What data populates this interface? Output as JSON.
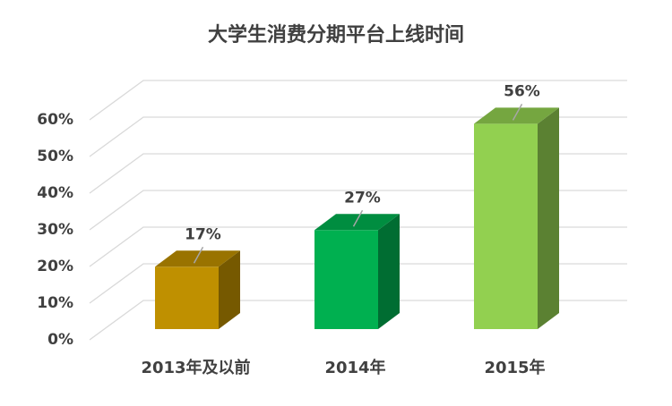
{
  "chart_data": {
    "type": "bar3d",
    "title": "大学生消费分期平台上线时间",
    "categories": [
      "2013年及以前",
      "2014年",
      "2015年"
    ],
    "values": [
      17,
      27,
      56
    ],
    "value_labels": [
      "17%",
      "27%",
      "56%"
    ],
    "colors": [
      "#bf9000",
      "#00b050",
      "#92d050"
    ],
    "ylim": [
      0,
      60
    ],
    "yticks": [
      {
        "value": 0,
        "label": "0%"
      },
      {
        "value": 10,
        "label": "10%"
      },
      {
        "value": 20,
        "label": "20%"
      },
      {
        "value": 30,
        "label": "30%"
      },
      {
        "value": 40,
        "label": "40%"
      },
      {
        "value": 50,
        "label": "50%"
      },
      {
        "value": 60,
        "label": "60%"
      }
    ],
    "grid": true
  }
}
